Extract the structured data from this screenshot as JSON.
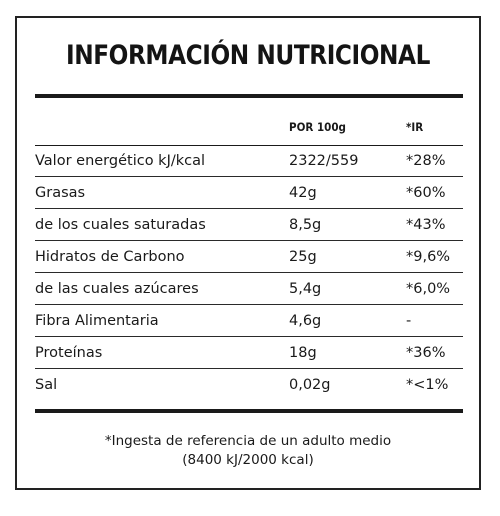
{
  "title": "INFORMACIÓN NUTRICIONAL",
  "columns": {
    "per_100g": "POR 100g",
    "ir": "*IR"
  },
  "rows": [
    {
      "name": "Valor energético kJ/kcal",
      "value": "2322/559",
      "ir": "*28%"
    },
    {
      "name": "Grasas",
      "value": "42g",
      "ir": "*60%"
    },
    {
      "name": "de los cuales saturadas",
      "value": "8,5g",
      "ir": "*43%"
    },
    {
      "name": "Hidratos de Carbono",
      "value": "25g",
      "ir": "*9,6%"
    },
    {
      "name": "de las cuales azúcares",
      "value": "5,4g",
      "ir": "*6,0%"
    },
    {
      "name": "Fibra Alimentaria",
      "value": "4,6g",
      "ir": "-"
    },
    {
      "name": "Proteínas",
      "value": "18g",
      "ir": "*36%"
    },
    {
      "name": "Sal",
      "value": "0,02g",
      "ir": "*<1%"
    }
  ],
  "footnote": {
    "line1": "*Ingesta de referencia de un adulto medio",
    "line2": "(8400 kJ/2000 kcal)"
  }
}
